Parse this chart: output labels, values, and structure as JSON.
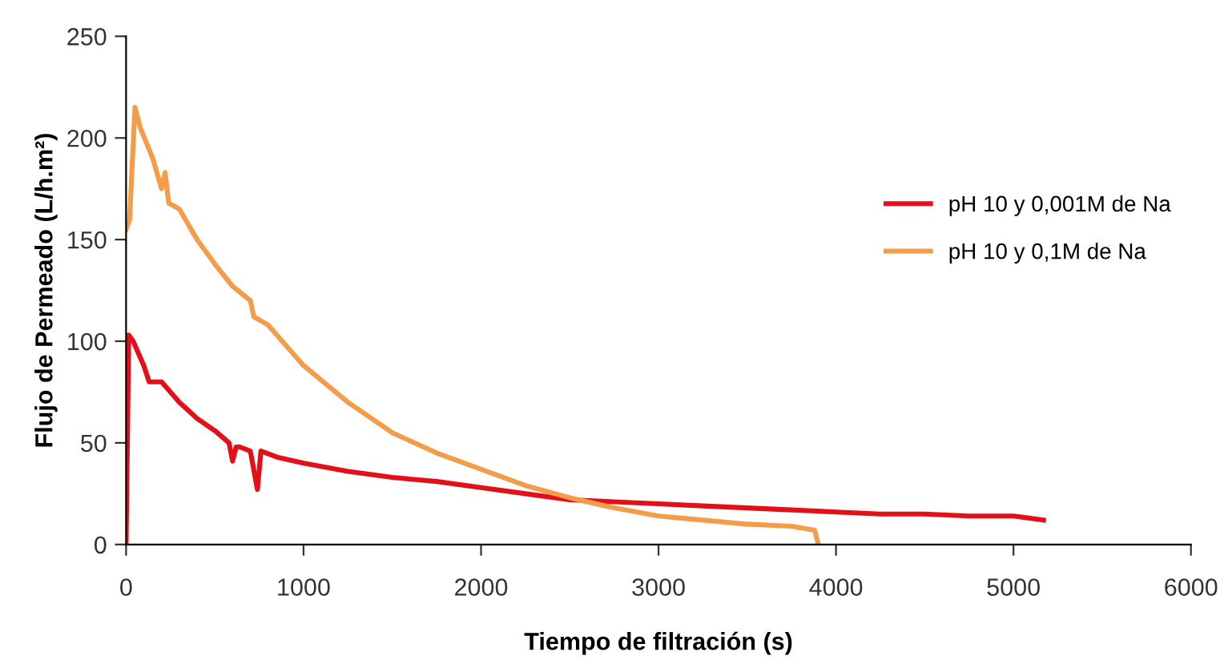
{
  "chart_data": {
    "type": "line",
    "xlabel": "Tiempo de filtración (s)",
    "ylabel": "Flujo de Permeado (L/h.m²)",
    "xlim": [
      0,
      6000
    ],
    "xticks": [
      0,
      1000,
      2000,
      3000,
      4000,
      5000,
      6000
    ],
    "ylim": [
      0,
      250
    ],
    "yticks": [
      0,
      50,
      100,
      150,
      200,
      250
    ],
    "grid": false,
    "legend": "right",
    "marker": "none",
    "line_style": "solid",
    "series": [
      {
        "name": "pH 10 y 0,001M de Na",
        "color": "#e3101a",
        "x": [
          0,
          15,
          40,
          100,
          130,
          200,
          300,
          400,
          500,
          580,
          600,
          620,
          640,
          700,
          740,
          760,
          850,
          1000,
          1250,
          1500,
          1750,
          2000,
          2250,
          2500,
          2750,
          3000,
          3250,
          3500,
          3750,
          4000,
          4250,
          4500,
          4750,
          5000,
          5170
        ],
        "values": [
          0,
          103,
          100,
          88,
          80,
          80,
          70,
          62,
          56,
          50,
          41,
          48,
          48,
          46,
          27,
          46,
          43,
          40,
          36,
          33,
          31,
          28,
          25,
          22,
          21,
          20,
          19,
          18,
          17,
          16,
          15,
          15,
          14,
          14,
          12
        ]
      },
      {
        "name": "pH 10 y 0,1M de Na",
        "color": "#f39c4a",
        "x": [
          0,
          20,
          50,
          80,
          150,
          200,
          220,
          240,
          300,
          400,
          500,
          600,
          700,
          720,
          800,
          1000,
          1250,
          1500,
          1750,
          2000,
          2250,
          2500,
          2750,
          3000,
          3250,
          3500,
          3750,
          3880,
          3900
        ],
        "values": [
          155,
          160,
          215,
          205,
          190,
          175,
          183,
          168,
          165,
          150,
          138,
          127,
          120,
          112,
          108,
          88,
          70,
          55,
          45,
          37,
          29,
          23,
          18,
          14,
          12,
          10,
          9,
          7,
          0
        ]
      }
    ]
  }
}
